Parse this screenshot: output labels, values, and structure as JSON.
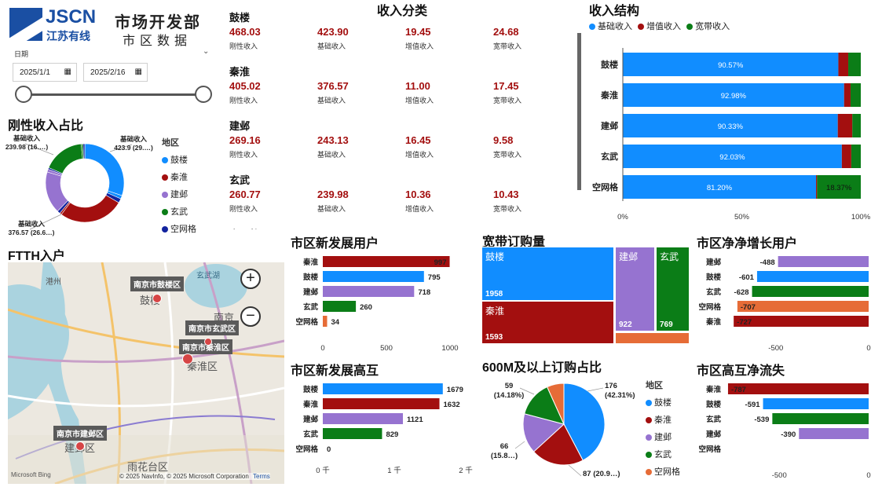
{
  "header": {
    "logo_text": "JSCN",
    "logo_sub": "江苏有线",
    "title_line1": "市场开发部",
    "title_line2": "市区数据"
  },
  "filter": {
    "label": "日期",
    "start": "2025/1/1",
    "end": "2025/2/16"
  },
  "revenue_category": {
    "title": "收入分类",
    "metric_labels": [
      "刚性收入",
      "基础收入",
      "增值收入",
      "宽带收入"
    ],
    "regions": [
      {
        "name": "鼓楼",
        "values": [
          "468.03",
          "423.90",
          "19.45",
          "24.68"
        ]
      },
      {
        "name": "秦淮",
        "values": [
          "405.02",
          "376.57",
          "11.00",
          "17.45"
        ]
      },
      {
        "name": "建邺",
        "values": [
          "269.16",
          "243.13",
          "16.45",
          "9.58"
        ]
      },
      {
        "name": "玄武",
        "values": [
          "260.77",
          "239.98",
          "10.36",
          "10.43"
        ]
      },
      {
        "name": "空网格"
      }
    ]
  },
  "colors": {
    "blue": "#118DFF",
    "red": "#A30F0F",
    "purple": "#9673D0",
    "green": "#0B7D17",
    "orange": "#E66C37",
    "navy": "#12239E",
    "title_red": "#A30F0F"
  },
  "legend_regions": {
    "title": "地区",
    "items": [
      "鼓楼",
      "秦淮",
      "建邺",
      "玄武",
      "空网格"
    ]
  },
  "map": {
    "title": "FTTH入户",
    "pins": [
      "南京市鼓楼区",
      "南京市玄武区",
      "南京市秦淮区",
      "南京市建邺区"
    ],
    "places": [
      "鼓楼",
      "南京",
      "秦淮区",
      "建邺区",
      "雨花台区",
      "港州",
      "玄武湖"
    ],
    "zoom_in": "+",
    "zoom_out": "−",
    "attribution": "© 2025 NavInfo, © 2025 Microsoft Corporation",
    "terms": "Terms",
    "bing": "Microsoft Bing"
  },
  "chart_data": [
    {
      "id": "rigid_share",
      "type": "pie",
      "title": "刚性收入占比",
      "slices": [
        {
          "label": "基础收入",
          "value": 423.9,
          "text": "423.9 (29.…)"
        },
        {
          "label": "增值收入",
          "value": 19.45
        },
        {
          "label": "宽带收入",
          "value": 24.68
        },
        {
          "label": "基础收入",
          "value": 376.57,
          "text": "376.57 (26.6…)"
        },
        {
          "label": "增值收入",
          "value": 11.0
        },
        {
          "label": "宽带收入",
          "value": 17.45
        },
        {
          "label": "基础收入",
          "value": 243.13
        },
        {
          "label": "增值收入",
          "value": 16.45
        },
        {
          "label": "宽带收入",
          "value": 9.58
        },
        {
          "label": "基础收入",
          "value": 239.98,
          "text": "239.98 (16.…)"
        },
        {
          "label": "增值收入",
          "value": 10.36
        },
        {
          "label": "宽带收入",
          "value": 10.43
        }
      ]
    },
    {
      "id": "revenue_structure",
      "type": "bar",
      "stacked": "100%",
      "title": "收入结构",
      "legend": [
        "基础收入",
        "增值收入",
        "宽带收入"
      ],
      "categories": [
        "鼓楼",
        "秦淮",
        "建邺",
        "玄武",
        "空网格"
      ],
      "series": [
        {
          "name": "基础收入",
          "values": [
            90.57,
            92.98,
            90.33,
            92.03,
            81.2
          ]
        },
        {
          "name": "增值收入",
          "values": [
            4.16,
            2.72,
            6.11,
            3.97,
            0.43
          ]
        },
        {
          "name": "宽带收入",
          "values": [
            5.27,
            4.3,
            3.56,
            4.0,
            18.37
          ]
        }
      ],
      "data_labels": [
        "90.57%",
        "92.98%",
        "90.33%",
        "92.03%",
        "81.20%",
        "18.37%"
      ],
      "x_ticks": [
        "0%",
        "50%",
        "100%"
      ]
    },
    {
      "id": "new_users",
      "type": "bar",
      "title": "市区新发展用户",
      "categories": [
        "秦淮",
        "鼓楼",
        "建邺",
        "玄武",
        "空网格"
      ],
      "values": [
        997,
        795,
        718,
        260,
        34
      ],
      "xlim": [
        0,
        1000
      ],
      "x_ticks": [
        "0",
        "500",
        "1000"
      ]
    },
    {
      "id": "broadband_orders",
      "type": "treemap",
      "title": "宽带订购量",
      "categories": [
        "鼓楼",
        "秦淮",
        "建邺",
        "玄武",
        "空网格"
      ],
      "values": [
        1958,
        1593,
        922,
        769,
        null
      ]
    },
    {
      "id": "net_growth_users",
      "type": "bar",
      "title": "市区净净增长用户",
      "categories": [
        "建邺",
        "鼓楼",
        "玄武",
        "空网格",
        "秦淮"
      ],
      "values": [
        -488,
        -601,
        -628,
        -707,
        -727
      ],
      "xlim": [
        -770,
        0
      ],
      "x_ticks": [
        "-500",
        "0"
      ]
    },
    {
      "id": "new_hi_users",
      "type": "bar",
      "title": "市区新发展高互",
      "categories": [
        "鼓楼",
        "秦淮",
        "建邺",
        "玄武",
        "空网格"
      ],
      "values": [
        1679,
        1632,
        1121,
        829,
        0
      ],
      "xlim": [
        0,
        2000
      ],
      "x_ticks": [
        "0 千",
        "1 千",
        "2 千"
      ]
    },
    {
      "id": "share_600m",
      "type": "pie",
      "title": "600M及以上订购占比",
      "slices": [
        {
          "label": "鼓楼",
          "value": 176,
          "text1": "176",
          "text2": "(42.31%)"
        },
        {
          "label": "秦淮",
          "value": 87,
          "text1": "87 (20.9…)"
        },
        {
          "label": "建邺",
          "value": 66,
          "text1": "66",
          "text2": "(15.8…)"
        },
        {
          "label": "玄武",
          "value": 59,
          "text1": "59",
          "text2": "(14.18%)"
        },
        {
          "label": "空网格",
          "value": 28
        }
      ]
    },
    {
      "id": "hi_net_loss",
      "type": "bar",
      "title": "市区高互净流失",
      "categories": [
        "秦淮",
        "鼓楼",
        "玄武",
        "建邺",
        "空网格"
      ],
      "values": [
        -787,
        -591,
        -539,
        -390,
        null
      ],
      "xlim": [
        -800,
        0
      ],
      "x_ticks": [
        "-500",
        "0"
      ]
    }
  ]
}
